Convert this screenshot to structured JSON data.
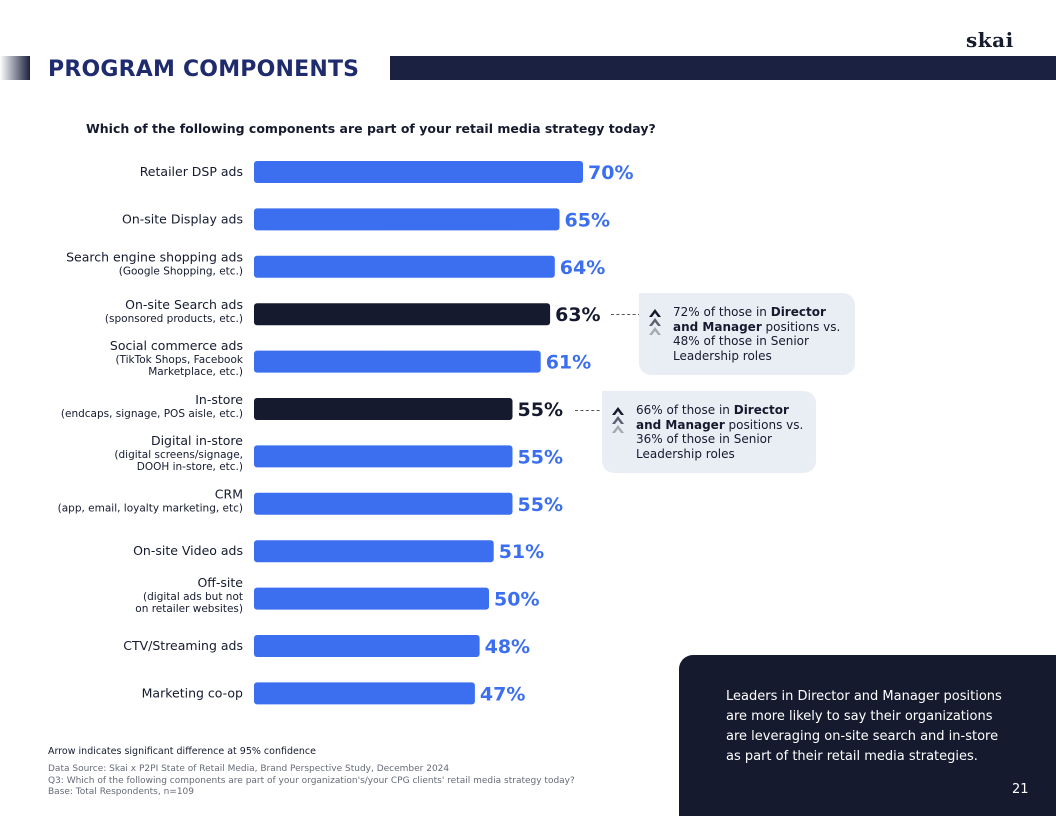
{
  "brand": {
    "logo_text": "skai"
  },
  "header": {
    "title": "PROGRAM COMPONENTS"
  },
  "colors": {
    "accent_blue": "#3b6ff0",
    "highlight_dark": "#151a2e",
    "callout_bg": "#e9eef5",
    "title_blue": "#1f2b6d"
  },
  "chart_data": {
    "type": "bar",
    "orientation": "horizontal",
    "title": "Which of the following components are part of your retail media strategy today?",
    "categories": [
      {
        "label": "Retailer DSP ads",
        "sub": []
      },
      {
        "label": "On-site Display ads",
        "sub": []
      },
      {
        "label": "Search engine shopping ads",
        "sub": [
          "(Google Shopping, etc.)"
        ]
      },
      {
        "label": "On-site Search ads",
        "sub": [
          "(sponsored products, etc.)"
        ]
      },
      {
        "label": "Social commerce ads",
        "sub": [
          "(TikTok Shops, Facebook",
          "Marketplace, etc.)"
        ]
      },
      {
        "label": "In-store",
        "sub": [
          "(endcaps, signage, POS aisle, etc.)"
        ]
      },
      {
        "label": "Digital in-store",
        "sub": [
          "(digital screens/signage,",
          "DOOH in-store, etc.)"
        ]
      },
      {
        "label": "CRM",
        "sub": [
          "(app, email, loyalty marketing, etc)"
        ]
      },
      {
        "label": "On-site Video ads",
        "sub": []
      },
      {
        "label": "Off-site",
        "sub": [
          "(digital ads but not",
          "on retailer websites)"
        ]
      },
      {
        "label": "CTV/Streaming ads",
        "sub": []
      },
      {
        "label": "Marketing co-op",
        "sub": []
      }
    ],
    "values": [
      70,
      65,
      64,
      63,
      61,
      55,
      55,
      55,
      51,
      50,
      48,
      47
    ],
    "value_labels": [
      "70%",
      "65%",
      "64%",
      "63%",
      "61%",
      "55%",
      "55%",
      "55%",
      "51%",
      "50%",
      "48%",
      "47%"
    ],
    "highlighted": [
      false,
      false,
      false,
      true,
      false,
      true,
      false,
      false,
      false,
      false,
      false,
      false
    ],
    "unit": "%",
    "xlim": [
      0,
      100
    ]
  },
  "callouts": [
    {
      "text_before": "72% of those in ",
      "bold": "Director and Manager",
      "text_after": " positions vs. 48% of those in Senior Leadership roles"
    },
    {
      "text_before": "66% of those in ",
      "bold": "Director and Manager",
      "text_after": " positions vs. 36% of those in Senior Leadership roles"
    }
  ],
  "takeaway": {
    "text": "Leaders in Director and Manager positions are more likely to say their organizations are leveraging on-site search and in-store as part of their retail media strategies.",
    "page_number": "21"
  },
  "footnotes": {
    "arrow_note": "Arrow indicates significant difference at 95% confidence",
    "source_lines": [
      "Data Source: Skai x P2PI State of Retail Media, Brand Perspective Study, December 2024",
      "Q3: Which of the following components are part of your organization's/your CPG clients' retail media strategy today?",
      "Base:  Total Respondents, n=109"
    ]
  }
}
